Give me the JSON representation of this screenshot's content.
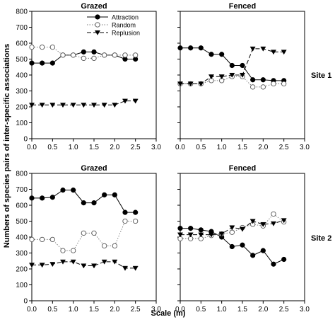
{
  "figure": {
    "ylabel": "Numbers of species pairs of inter-specific associations",
    "xlabel": "Scale (m)",
    "row_labels": [
      "Site 1",
      "Site 2"
    ],
    "legend": [
      {
        "name": "Attraction",
        "marker": "filled-circle",
        "line": "solid"
      },
      {
        "name": "Random",
        "marker": "open-circle",
        "line": "dotted"
      },
      {
        "name": "Replusion",
        "marker": "filled-triangle-down",
        "line": "dashed"
      }
    ]
  },
  "chart_data": [
    {
      "type": "line",
      "title": "Grazed",
      "row": "Site 1",
      "x": [
        0,
        0.25,
        0.5,
        0.75,
        1.0,
        1.25,
        1.5,
        1.75,
        2.0,
        2.25,
        2.5
      ],
      "xlim": [
        0,
        3
      ],
      "ylim": [
        0,
        800
      ],
      "xticks": [
        "0.0",
        "0.5",
        "1.0",
        "1.5",
        "2.0",
        "2.5",
        "3.0"
      ],
      "yticks": [
        "0",
        "100",
        "200",
        "300",
        "400",
        "500",
        "600",
        "700",
        "800"
      ],
      "series": [
        {
          "name": "Attraction",
          "values": [
            475,
            475,
            475,
            525,
            525,
            545,
            545,
            525,
            525,
            500,
            500
          ]
        },
        {
          "name": "Random",
          "values": [
            575,
            575,
            575,
            525,
            525,
            505,
            505,
            525,
            525,
            525,
            525
          ]
        },
        {
          "name": "Replusion",
          "values": [
            212,
            212,
            212,
            212,
            212,
            212,
            212,
            212,
            212,
            237,
            237
          ]
        }
      ]
    },
    {
      "type": "line",
      "title": "Fenced",
      "row": "Site 1",
      "x": [
        0,
        0.25,
        0.5,
        0.75,
        1.0,
        1.25,
        1.5,
        1.75,
        2.0,
        2.25,
        2.5
      ],
      "xlim": [
        0,
        3
      ],
      "ylim": [
        0,
        800
      ],
      "xticks": [
        "0.0",
        "0.5",
        "1.0",
        "1.5",
        "2.0",
        "2.5",
        "3.0"
      ],
      "series": [
        {
          "name": "Attraction",
          "values": [
            570,
            570,
            570,
            530,
            530,
            460,
            460,
            370,
            370,
            365,
            365
          ]
        },
        {
          "name": "Random",
          "values": [
            345,
            345,
            345,
            365,
            365,
            390,
            390,
            325,
            325,
            345,
            345
          ]
        },
        {
          "name": "Replusion",
          "values": [
            345,
            345,
            345,
            390,
            390,
            400,
            400,
            565,
            565,
            545,
            545
          ]
        }
      ]
    },
    {
      "type": "line",
      "title": "Grazed",
      "row": "Site 2",
      "x": [
        0,
        0.25,
        0.5,
        0.75,
        1.0,
        1.25,
        1.5,
        1.75,
        2.0,
        2.25,
        2.5
      ],
      "xlim": [
        0,
        3
      ],
      "ylim": [
        0,
        800
      ],
      "xticks": [
        "0.0",
        "0.5",
        "1.0",
        "1.5",
        "2.0",
        "2.5",
        "3.0"
      ],
      "yticks": [
        "0",
        "100",
        "200",
        "300",
        "400",
        "500",
        "600",
        "700",
        "800"
      ],
      "series": [
        {
          "name": "Attraction",
          "values": [
            645,
            645,
            650,
            695,
            695,
            615,
            615,
            665,
            665,
            555,
            555
          ]
        },
        {
          "name": "Random",
          "values": [
            385,
            385,
            385,
            315,
            315,
            425,
            425,
            345,
            345,
            500,
            500
          ]
        },
        {
          "name": "Replusion",
          "values": [
            225,
            225,
            230,
            245,
            245,
            220,
            220,
            245,
            245,
            205,
            205
          ]
        }
      ]
    },
    {
      "type": "line",
      "title": "Fenced",
      "row": "Site 2",
      "x": [
        0,
        0.25,
        0.5,
        0.75,
        1.0,
        1.25,
        1.5,
        1.75,
        2.0,
        2.25,
        2.5
      ],
      "xlim": [
        0,
        3
      ],
      "ylim": [
        0,
        800
      ],
      "xticks": [
        "0.0",
        "0.5",
        "1.0",
        "1.5",
        "2.0",
        "2.5",
        "3.0"
      ],
      "series": [
        {
          "name": "Attraction",
          "values": [
            455,
            455,
            445,
            435,
            400,
            340,
            350,
            285,
            315,
            230,
            260
          ]
        },
        {
          "name": "Random",
          "values": [
            390,
            390,
            390,
            410,
            420,
            430,
            460,
            480,
            470,
            545,
            495
          ]
        },
        {
          "name": "Replusion",
          "values": [
            415,
            415,
            415,
            415,
            420,
            460,
            450,
            500,
            480,
            485,
            505
          ]
        }
      ]
    }
  ]
}
